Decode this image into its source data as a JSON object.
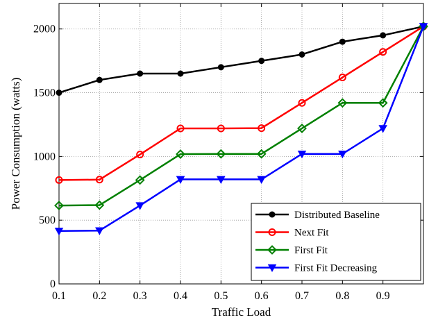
{
  "chart_data": {
    "type": "line",
    "title": "",
    "xlabel": "Traffic Load",
    "ylabel": "Power Consumption (watts)",
    "xlim": [
      0.1,
      1.0
    ],
    "ylim": [
      0,
      2200
    ],
    "xticks": [
      0.1,
      0.2,
      0.3,
      0.4,
      0.5,
      0.6,
      0.7,
      0.8,
      0.9
    ],
    "xtick_labels": [
      "0.1",
      "0.2",
      "0.3",
      "0.4",
      "0.5",
      "0.6",
      "0.7",
      "0.8",
      "0.9"
    ],
    "yticks": [
      0,
      500,
      1000,
      1500,
      2000
    ],
    "ytick_labels": [
      "0",
      "500",
      "1000",
      "1500",
      "2000"
    ],
    "grid": true,
    "legend_position": "bottom-right",
    "x": [
      0.1,
      0.2,
      0.3,
      0.4,
      0.5,
      0.6,
      0.7,
      0.8,
      0.9,
      1.0
    ],
    "series": [
      {
        "name": "Distributed Baseline",
        "color": "#000000",
        "marker": "dot",
        "values": [
          1500,
          1600,
          1650,
          1650,
          1700,
          1750,
          1800,
          1900,
          1950,
          2020
        ]
      },
      {
        "name": "Next Fit",
        "color": "#ff0000",
        "marker": "circle",
        "values": [
          815,
          818,
          1015,
          1220,
          1220,
          1222,
          1420,
          1620,
          1820,
          2020
        ]
      },
      {
        "name": "First Fit",
        "color": "#008000",
        "marker": "diamond",
        "values": [
          615,
          618,
          815,
          1018,
          1020,
          1020,
          1220,
          1420,
          1420,
          2020
        ]
      },
      {
        "name": "First Fit Decreasing",
        "color": "#0000ff",
        "marker": "triangle-down",
        "values": [
          415,
          418,
          615,
          820,
          820,
          820,
          1020,
          1020,
          1220,
          2020
        ]
      }
    ]
  }
}
